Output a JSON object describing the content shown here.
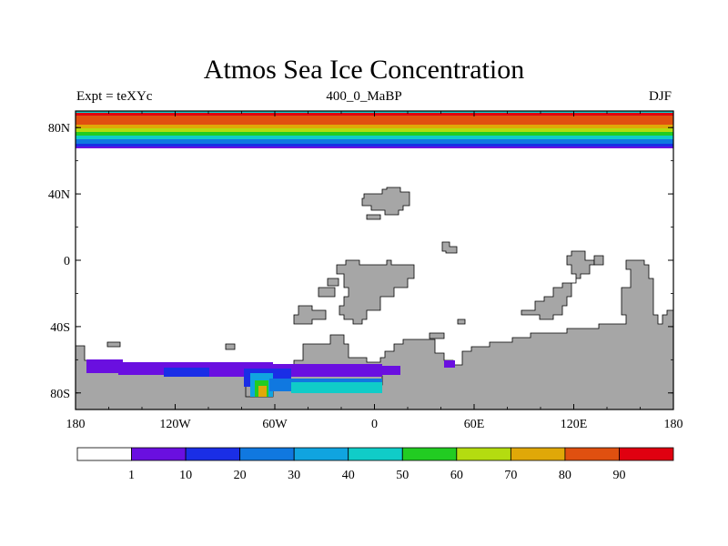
{
  "title": "Atmos Sea Ice Concentration",
  "subtitle_left": "Expt = teXYc",
  "subtitle_center": "400_0_MaBP",
  "subtitle_right": "DJF",
  "map": {
    "projection": "cylindrical-equidistant",
    "lon_range": [
      -180,
      180
    ],
    "lat_range": [
      -90,
      90
    ],
    "x_ticks": [
      {
        "lon": -180,
        "label": "180"
      },
      {
        "lon": -120,
        "label": "120W"
      },
      {
        "lon": -60,
        "label": "60W"
      },
      {
        "lon": 0,
        "label": "0"
      },
      {
        "lon": 60,
        "label": "60E"
      },
      {
        "lon": 120,
        "label": "120E"
      },
      {
        "lon": 180,
        "label": "180"
      }
    ],
    "y_ticks": [
      {
        "lat": 80,
        "label": "80N"
      },
      {
        "lat": 40,
        "label": "40N"
      },
      {
        "lat": 0,
        "label": "0"
      },
      {
        "lat": -40,
        "label": "40S"
      },
      {
        "lat": -80,
        "label": "80S"
      }
    ],
    "land_color": "#a6a6a6",
    "ocean_color": "#ffffff"
  },
  "colorbar": {
    "colors": [
      "#ffffff",
      "#6a0fe0",
      "#1a2ee6",
      "#1078e0",
      "#10a4e0",
      "#10ccc8",
      "#22cc22",
      "#b4dc10",
      "#e0a808",
      "#e05010",
      "#e00010"
    ],
    "labels": [
      "1",
      "10",
      "20",
      "30",
      "40",
      "50",
      "60",
      "70",
      "80",
      "90"
    ]
  }
}
